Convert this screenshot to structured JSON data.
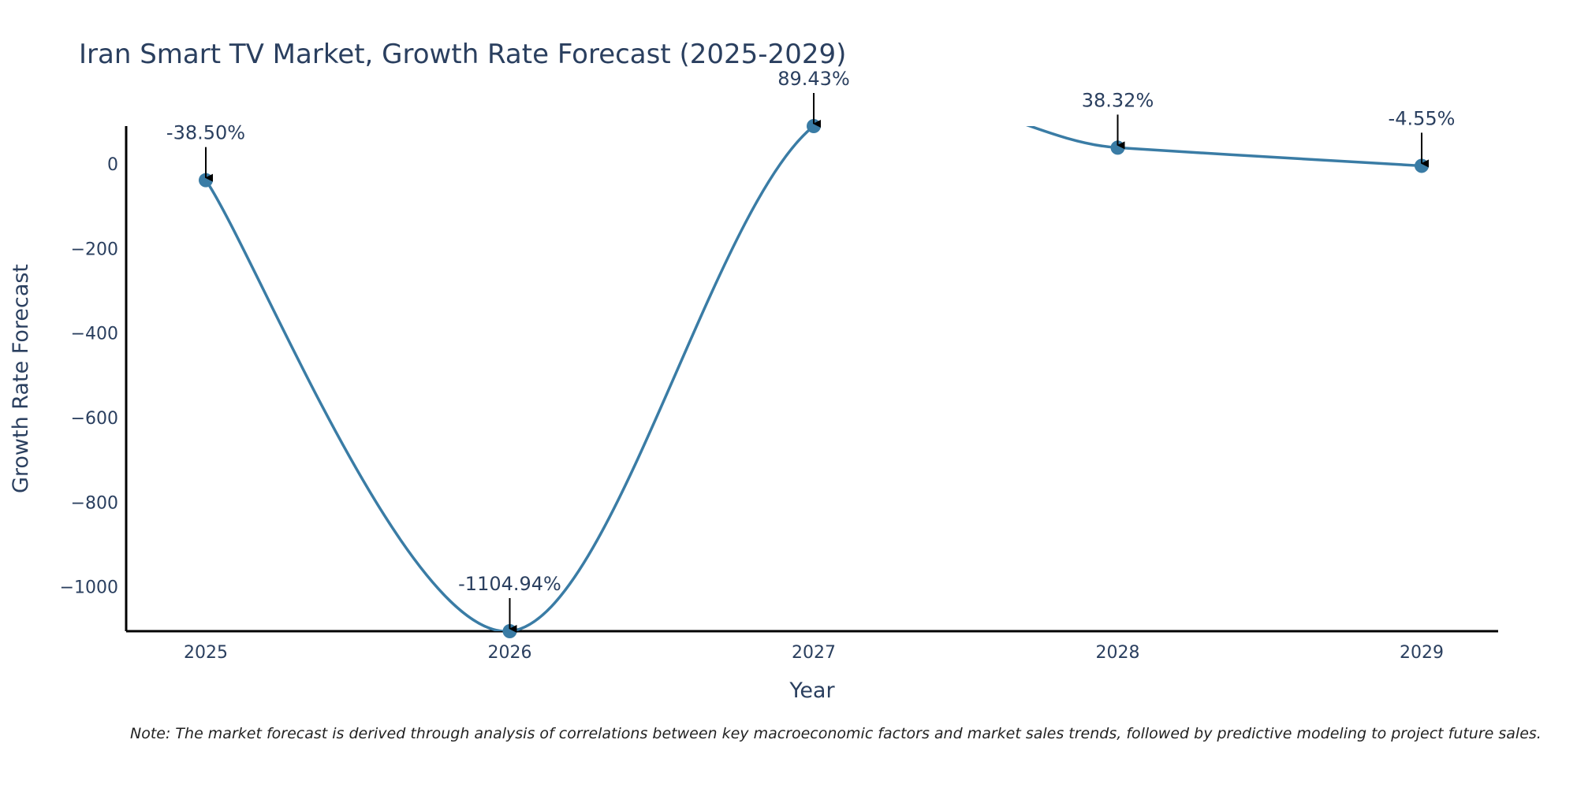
{
  "chart_data": {
    "type": "line",
    "title": "Iran Smart TV Market, Growth Rate Forecast (2025-2029)",
    "xlabel": "Year",
    "ylabel": "Growth Rate Forecast",
    "categories": [
      "2025",
      "2026",
      "2027",
      "2028",
      "2029"
    ],
    "series": [
      {
        "name": "Growth Rate Forecast",
        "values": [
          -38.5,
          -1104.94,
          89.43,
          38.32,
          -4.55
        ]
      }
    ],
    "data_labels": [
      "-38.50%",
      "-1104.94%",
      "89.43%",
      "38.32%",
      "-4.55%"
    ],
    "ylim": [
      -1104.94,
      89.43
    ],
    "yticks": [
      0,
      -200,
      -400,
      -600,
      -800,
      -1000
    ],
    "ytick_labels": [
      "0",
      "−200",
      "−400",
      "−600",
      "−800",
      "−1000"
    ],
    "grid": false,
    "line_shape": "spline"
  },
  "colors": {
    "line": "#3a7ca5",
    "axis": "#000000",
    "text": "#2a3f5f"
  },
  "note": "Note: The market forecast is derived through analysis of correlations between key macroeconomic factors and market sales trends, followed by predictive modeling to project future sales."
}
